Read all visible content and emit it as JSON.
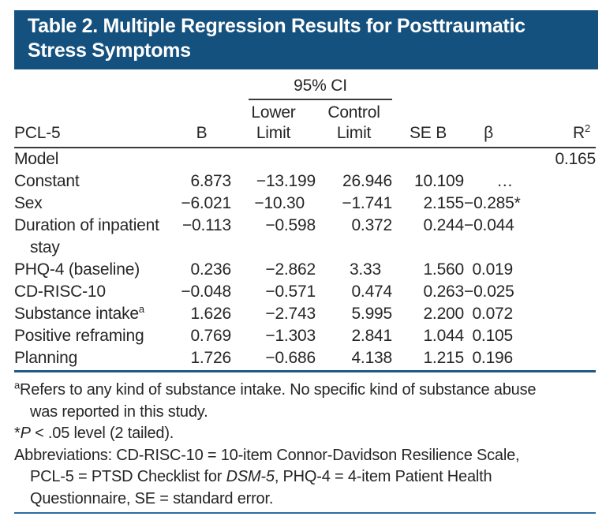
{
  "colors": {
    "header_bar_bg": "#15517e",
    "header_bar_text": "#ffffff",
    "rule_dark": "#3a3a3a",
    "table_bottom_rule_blue": "#1d5a8c",
    "page_bottom_rule_blue": "#2b6da4",
    "body_text": "#262626"
  },
  "title": {
    "lines": [
      "Table 2. Multiple Regression Results for Posttraumatic",
      "Stress Symptoms"
    ]
  },
  "table": {
    "stub_header": "PCL-5",
    "ci_spanner": "95% CI",
    "col_b": "B",
    "col_lower": {
      "l1": "Lower",
      "l2": "Limit"
    },
    "col_control": {
      "l1": "Control",
      "l2": "Limit"
    },
    "col_se": "SE B",
    "col_beta": "β",
    "col_r2": {
      "base": "R",
      "sup": "2"
    },
    "rows": [
      {
        "label": "Model",
        "r2": "0.165"
      },
      {
        "label": "Constant",
        "b": "6.873",
        "lower": "−13.199",
        "control": "26.946",
        "se": "10.109",
        "beta": "…"
      },
      {
        "label": "Sex",
        "b": "−6.021",
        "lower": "−10.30",
        "control": "−1.741",
        "se": "2.155",
        "beta": "−0.285*"
      },
      {
        "label": "Duration of inpatient stay",
        "b": "−0.113",
        "lower": "−0.598",
        "control": "0.372",
        "se": "0.244",
        "beta": "−0.044"
      },
      {
        "label": "PHQ-4 (baseline)",
        "b": "0.236",
        "lower": "−2.862",
        "control": "3.33",
        "se": "1.560",
        "beta": "0.019"
      },
      {
        "label": "CD-RISC-10",
        "b": "−0.048",
        "lower": "−0.571",
        "control": "0.474",
        "se": "0.263",
        "beta": "−0.025"
      },
      {
        "label": "Substance intake",
        "label_sup": "a",
        "b": "1.626",
        "lower": "−2.743",
        "control": "5.995",
        "se": "2.200",
        "beta": "0.072"
      },
      {
        "label": "Positive reframing",
        "b": "0.769",
        "lower": "−1.303",
        "control": "2.841",
        "se": "1.044",
        "beta": "0.105"
      },
      {
        "label": "Planning",
        "b": "1.726",
        "lower": "−0.686",
        "control": "4.138",
        "se": "1.215",
        "beta": "0.196"
      }
    ]
  },
  "footnotes": {
    "note_a": {
      "marker": "a",
      "line1": "Refers to any kind of substance intake. No specific kind of substance abuse",
      "line2": "was reported in this study."
    },
    "note_sig": {
      "marker": "*",
      "italic": "P",
      "rest": " < .05 level (2 tailed)."
    },
    "abbrev": {
      "line1": "Abbreviations: CD-RISC-10 = 10-item Connor-Davidson Resilience Scale,",
      "line2_pre": "PCL-5 = PTSD Checklist for ",
      "line2_italic": "DSM-5",
      "line2_post": ", PHQ-4 = 4-item Patient Health",
      "line3": "Questionnaire, SE = standard error."
    }
  }
}
